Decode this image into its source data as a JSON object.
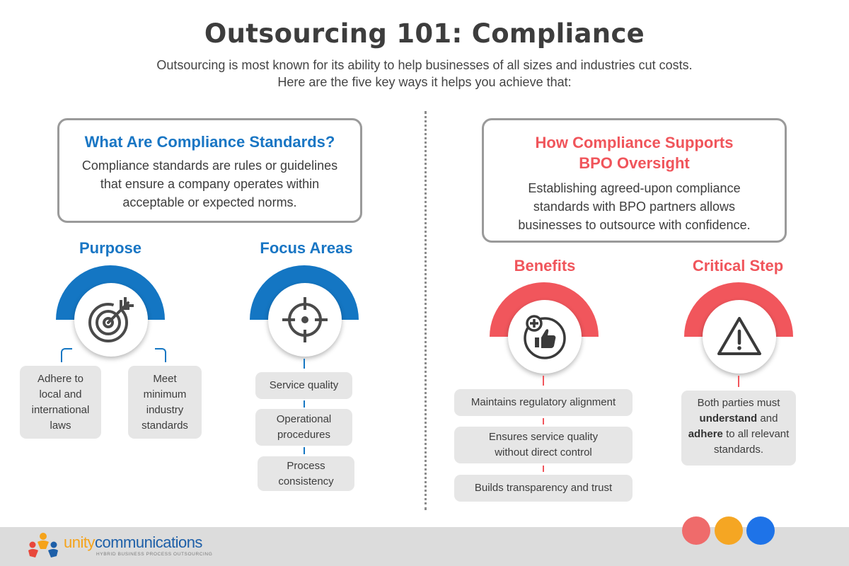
{
  "header": {
    "title": "Outsourcing 101: Compliance",
    "subtitle_line1": "Outsourcing is most known for its ability to help businesses of all sizes and industries cut costs.",
    "subtitle_line2": "Here are the five key ways it helps you achieve that:"
  },
  "left": {
    "box_title": "What Are Compliance Standards?",
    "box_text": "Compliance standards are rules or guidelines that ensure a company operates within acceptable or expected norms.",
    "purpose": {
      "heading": "Purpose",
      "icon": "target-arrow-icon",
      "items": [
        "Adhere to local and international laws",
        "Meet minimum industry standards"
      ]
    },
    "focus": {
      "heading": "Focus Areas",
      "icon": "crosshair-icon",
      "items": [
        "Service quality",
        "Operational procedures",
        "Process consistency"
      ]
    }
  },
  "right": {
    "box_title_line1": "How Compliance Supports",
    "box_title_line2": "BPO Oversight",
    "box_text": "Establishing agreed-upon compliance standards with BPO partners allows businesses to outsource with confidence.",
    "benefits": {
      "heading": "Benefits",
      "icon": "thumbs-up-plus-icon",
      "items": [
        "Maintains regulatory alignment",
        "Ensures service quality without direct control",
        "Builds transparency and trust"
      ]
    },
    "critical": {
      "heading": "Critical Step",
      "icon": "warning-triangle-icon",
      "text_pre": "Both parties must",
      "text_bold1": "understand",
      "text_mid": "and",
      "text_bold2": "adhere",
      "text_post": "to all relevant standards."
    }
  },
  "footer": {
    "brand_part1": "unity",
    "brand_part2": "communications",
    "tagline": "HYBRID BUSINESS PROCESS OUTSOURCING",
    "dot_colors": [
      "#ef6b6b",
      "#f5a623",
      "#1e73e8"
    ]
  },
  "colors": {
    "blue": "#1476c3",
    "red": "#f1565c",
    "pill": "#e6e6e6"
  }
}
